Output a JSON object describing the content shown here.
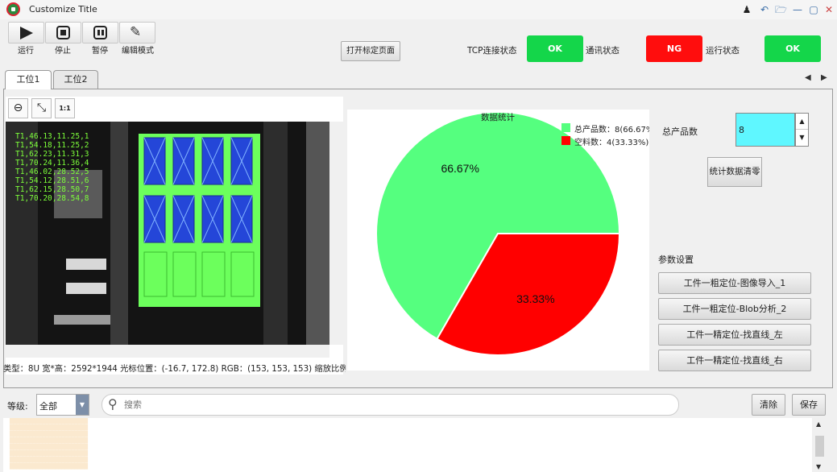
{
  "window": {
    "title": "Customize Title"
  },
  "toolbar": {
    "run": "运行",
    "stop": "停止",
    "pause": "暂停",
    "edit": "编辑模式",
    "open_calibration": "打开标定页面"
  },
  "status": {
    "tcp_label": "TCP连接状态",
    "tcp_value": "OK",
    "tcp_color": "#14d64a",
    "comm_label": "通讯状态",
    "comm_value": "NG",
    "comm_color": "#ff0d0d",
    "run_label": "运行状态",
    "run_value": "OK",
    "run_color": "#14d64a"
  },
  "tabs": [
    "工位1",
    "工位2"
  ],
  "image_view": {
    "overlay_lines": [
      "T1,46.13,11.25,1",
      "T1,54.18,11.25,2",
      "T1,62.23,11.31,3",
      "T1,70.24,11.36,4",
      "T1,46.02,28.52,5",
      "T1,54.12,28.51,6",
      "T1,62.15,28.50,7",
      "T1,70.20,28.54,8"
    ],
    "status_text": "类型：8U 宽*高：2592*1944 光标位置：(-16.7, 172.8) RGB：(153, 153, 153) 缩放比例..."
  },
  "chart": {
    "title": "数据统计",
    "legend": [
      {
        "label": "总产品数：8(66.67%",
        "color": "#55ff7f"
      },
      {
        "label": "空料数：4(33.33%)",
        "color": "#ff0000"
      }
    ],
    "slice_labels": [
      "66.67%",
      "33.33%"
    ]
  },
  "chart_data": {
    "type": "pie",
    "title": "数据统计",
    "categories": [
      "总产品数",
      "空料数"
    ],
    "values": [
      8,
      4
    ],
    "percentages": [
      66.67,
      33.33
    ],
    "colors": [
      "#55ff7f",
      "#ff0000"
    ],
    "legend_position": "top-right"
  },
  "stats": {
    "total_label": "总产品数",
    "total_value": "8",
    "clear_button": "统计数据清零",
    "params_label": "参数设置",
    "param_buttons": [
      "工件一粗定位-图像导入_1",
      "工件一粗定位-Blob分析_2",
      "工件一精定位-找直线_左",
      "工件一精定位-找直线_右"
    ]
  },
  "log": {
    "level_label": "等级:",
    "level_value": "全部",
    "search_placeholder": "搜索",
    "clear_button": "清除",
    "save_button": "保存"
  }
}
